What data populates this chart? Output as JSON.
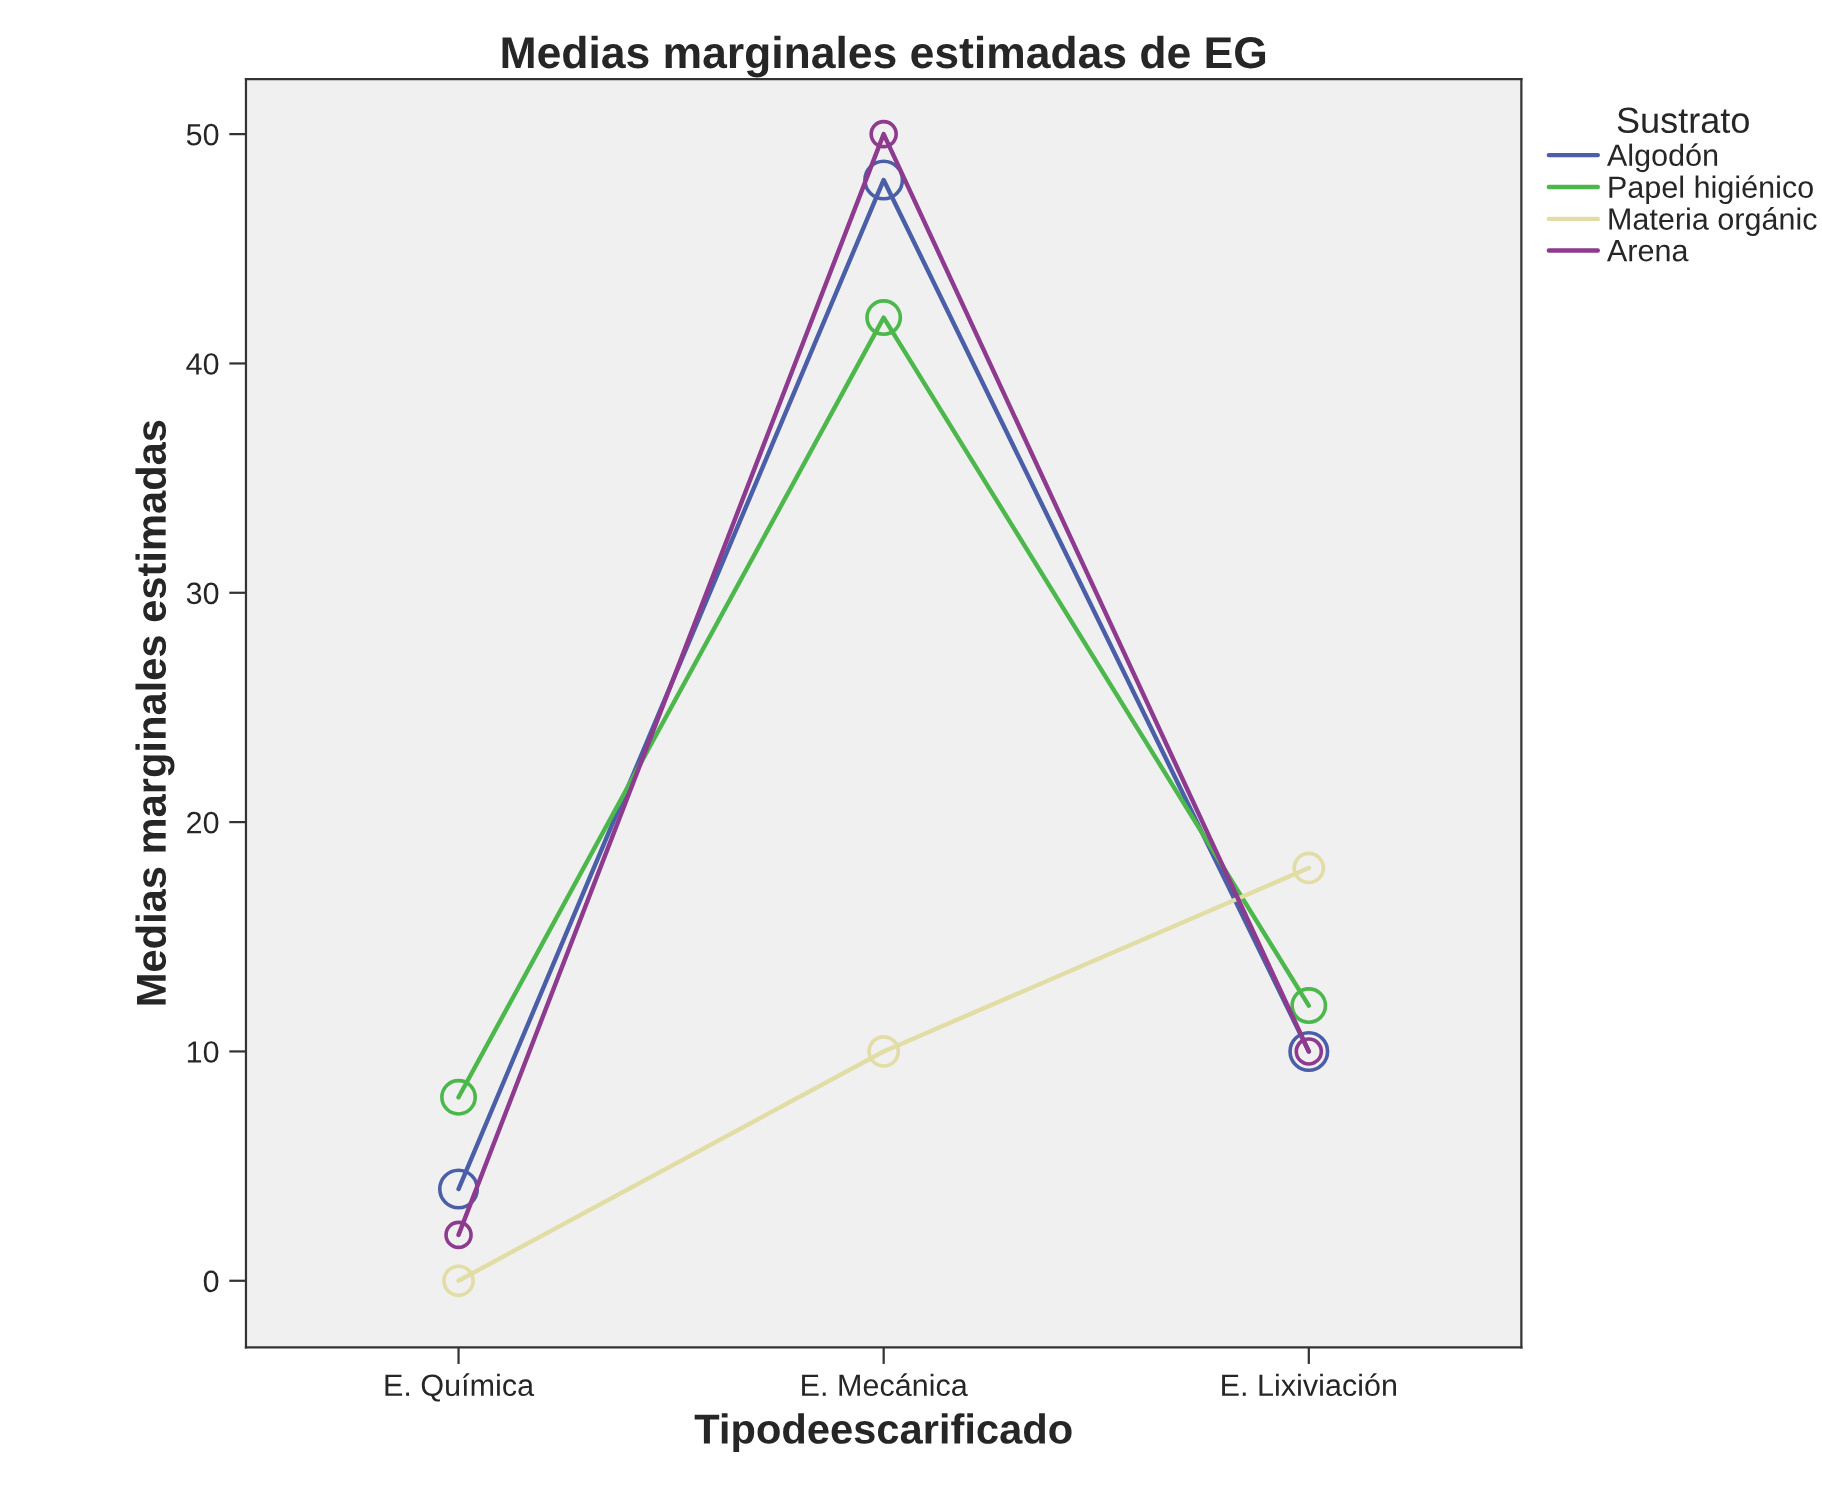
{
  "chart_data": {
    "type": "line",
    "title": "Medias marginales estimadas de EG",
    "xlabel": "Tipodeescarificado",
    "ylabel": "Medias marginales estimadas",
    "legend_title": "Sustrato",
    "categories": [
      "E. Química",
      "E. Mecánica",
      "E. Lixiviación"
    ],
    "series": [
      {
        "name": "Algodón",
        "color": "#4a5fa8",
        "values": [
          4,
          48,
          10
        ]
      },
      {
        "name": "Papel higiénico",
        "color": "#4cb84c",
        "values": [
          8,
          42,
          12
        ]
      },
      {
        "name": "Materia orgánic",
        "color": "#e2dda4",
        "values": [
          0,
          10,
          18
        ]
      },
      {
        "name": "Arena",
        "color": "#8e3a8e",
        "values": [
          2,
          50,
          10
        ]
      }
    ],
    "ylim": [
      -2.9,
      52.4
    ],
    "yticks": [
      0,
      10,
      20,
      30,
      40,
      50
    ],
    "grid": false,
    "legend": "right",
    "marker": "circle",
    "line_style": "solid"
  }
}
